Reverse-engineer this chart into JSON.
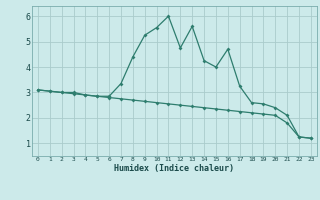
{
  "xlabel": "Humidex (Indice chaleur)",
  "line1_x": [
    0,
    1,
    2,
    3,
    4,
    5,
    6,
    7,
    8,
    9,
    10,
    11,
    12,
    13,
    14,
    15,
    16,
    17,
    18,
    19,
    20,
    21,
    22,
    23
  ],
  "line1_y": [
    3.1,
    3.05,
    3.0,
    3.0,
    2.9,
    2.85,
    2.85,
    3.35,
    4.4,
    5.25,
    5.55,
    6.0,
    4.75,
    5.6,
    4.25,
    4.0,
    4.7,
    3.25,
    2.6,
    2.55,
    2.4,
    2.1,
    1.25,
    1.2
  ],
  "line2_x": [
    0,
    1,
    2,
    3,
    4,
    5,
    6,
    7,
    8,
    9,
    10,
    11,
    12,
    13,
    14,
    15,
    16,
    17,
    18,
    19,
    20,
    21,
    22,
    23
  ],
  "line2_y": [
    3.1,
    3.05,
    3.0,
    2.95,
    2.9,
    2.85,
    2.8,
    2.75,
    2.7,
    2.65,
    2.6,
    2.55,
    2.5,
    2.45,
    2.4,
    2.35,
    2.3,
    2.25,
    2.2,
    2.15,
    2.1,
    1.8,
    1.25,
    1.2
  ],
  "line_color": "#2e7d6e",
  "bg_color": "#cceaea",
  "grid_color": "#aacccc",
  "ylim": [
    0.5,
    6.4
  ],
  "xlim": [
    -0.5,
    23.5
  ],
  "yticks": [
    1,
    2,
    3,
    4,
    5,
    6
  ],
  "xticks": [
    0,
    1,
    2,
    3,
    4,
    5,
    6,
    7,
    8,
    9,
    10,
    11,
    12,
    13,
    14,
    15,
    16,
    17,
    18,
    19,
    20,
    21,
    22,
    23
  ]
}
